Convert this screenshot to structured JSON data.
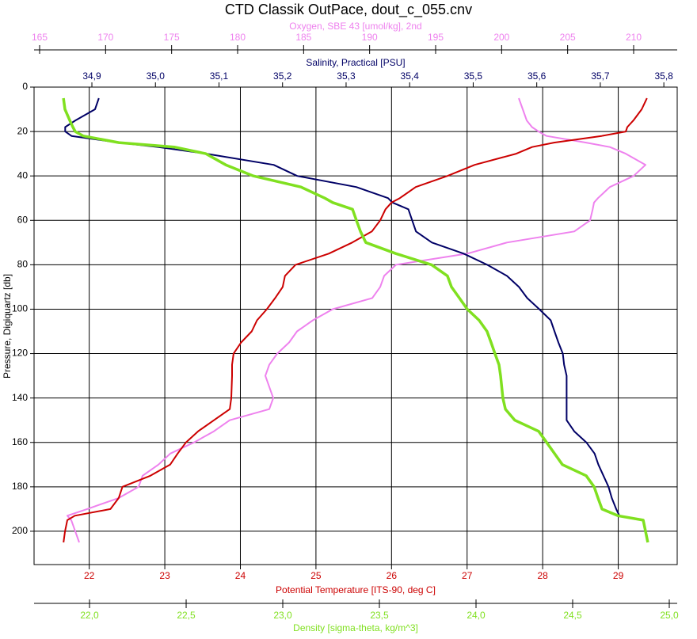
{
  "chart_data": {
    "type": "line",
    "title": "CTD Classik OutPace, dout_c_055.cnv",
    "y_label": "Pressure, Digiquartz [db]",
    "ylim": [
      0,
      215
    ],
    "y_inverted": true,
    "yticks": [
      0,
      20,
      40,
      60,
      80,
      100,
      120,
      140,
      160,
      180,
      200
    ],
    "y": [
      5,
      10,
      15,
      18,
      20,
      22,
      25,
      27,
      30,
      35,
      40,
      45,
      50,
      52,
      55,
      60,
      65,
      70,
      75,
      80,
      85,
      90,
      95,
      100,
      105,
      110,
      115,
      120,
      125,
      130,
      140,
      145,
      150,
      155,
      160,
      165,
      170,
      175,
      180,
      185,
      190,
      193,
      195,
      200,
      205
    ],
    "series": [
      {
        "name": "Oxygen, SBE 43 [umol/kg], 2nd",
        "color": "#ee82ee",
        "xlim": [
          164.58,
          213.3
        ],
        "xticks": [
          165,
          170,
          175,
          180,
          185,
          190,
          195,
          200,
          205,
          210
        ],
        "values": [
          201.3,
          201.6,
          201.9,
          202.3,
          202.8,
          203.4,
          206.4,
          208.2,
          209.4,
          210.9,
          210.0,
          208.2,
          207.3,
          207.0,
          206.9,
          206.7,
          205.5,
          200.4,
          197.4,
          192.0,
          191.1,
          190.8,
          190.2,
          187.2,
          185.7,
          184.5,
          183.9,
          183.0,
          182.4,
          182.1,
          182.7,
          182.4,
          179.4,
          178.2,
          176.7,
          174.9,
          174.0,
          172.8,
          172.5,
          171.0,
          168.6,
          167.1,
          167.4,
          167.7,
          168.0
        ]
      },
      {
        "name": "Salinity, Practical [PSU]",
        "color": "#000066",
        "xlim": [
          34.809,
          35.821
        ],
        "xticks": [
          {
            "value": 34.9,
            "label": "34,9"
          },
          {
            "value": 35.0,
            "label": "35,0"
          },
          {
            "value": 35.1,
            "label": "35,1"
          },
          {
            "value": 35.2,
            "label": "35,2"
          },
          {
            "value": 35.3,
            "label": "35,3"
          },
          {
            "value": 35.4,
            "label": "35,4"
          },
          {
            "value": 35.5,
            "label": "35,5"
          },
          {
            "value": 35.6,
            "label": "35,6"
          },
          {
            "value": 35.7,
            "label": "35,7"
          },
          {
            "value": 35.8,
            "label": "35,8"
          }
        ],
        "values": [
          34.911,
          34.905,
          34.874,
          34.858,
          34.858,
          34.868,
          34.942,
          35.005,
          35.08,
          35.186,
          35.223,
          35.316,
          35.366,
          35.373,
          35.398,
          35.404,
          35.41,
          35.435,
          35.485,
          35.522,
          35.553,
          35.572,
          35.585,
          35.604,
          35.622,
          35.628,
          35.634,
          35.641,
          35.643,
          35.647,
          35.647,
          35.647,
          35.647,
          35.659,
          35.678,
          35.691,
          35.697,
          35.705,
          35.713,
          35.718,
          35.725,
          35.73,
          null,
          null,
          null
        ]
      },
      {
        "name": "Potential Temperature [ITS-90, deg C]",
        "color": "#cc0000",
        "grid": true,
        "xlim": [
          21.27,
          29.78
        ],
        "xticks": [
          22,
          23,
          24,
          25,
          26,
          27,
          28,
          29
        ],
        "values": [
          29.38,
          29.31,
          29.2,
          29.12,
          29.1,
          28.78,
          28.15,
          27.86,
          27.65,
          27.1,
          26.74,
          26.32,
          26.11,
          26.0,
          25.92,
          25.85,
          25.74,
          25.48,
          25.17,
          24.73,
          24.59,
          24.56,
          24.46,
          24.35,
          24.22,
          24.15,
          24.01,
          23.91,
          23.89,
          23.89,
          23.88,
          23.86,
          23.65,
          23.44,
          23.28,
          23.17,
          23.07,
          22.81,
          22.44,
          22.39,
          22.28,
          21.81,
          21.71,
          21.68,
          21.66
        ]
      },
      {
        "name": "Density [sigma-theta, kg/m^3]",
        "color": "#80e020",
        "xlim": [
          21.713,
          25.041
        ],
        "xticks": [
          {
            "value": 22.0,
            "label": "22,0"
          },
          {
            "value": 22.5,
            "label": "22,5"
          },
          {
            "value": 23.0,
            "label": "23,0"
          },
          {
            "value": 23.5,
            "label": "23,5"
          },
          {
            "value": 24.0,
            "label": "24,0"
          },
          {
            "value": 24.5,
            "label": "24,5"
          },
          {
            "value": 25.0,
            "label": "25,0"
          }
        ],
        "values": [
          21.865,
          21.873,
          21.898,
          21.914,
          21.926,
          21.967,
          22.152,
          22.439,
          22.602,
          22.705,
          22.848,
          23.094,
          23.217,
          23.258,
          23.361,
          23.381,
          23.402,
          23.43,
          23.586,
          23.77,
          23.852,
          23.873,
          23.914,
          23.955,
          24.016,
          24.057,
          24.078,
          24.098,
          24.119,
          24.127,
          24.139,
          24.152,
          24.201,
          24.324,
          24.365,
          24.406,
          24.447,
          24.57,
          24.611,
          24.631,
          24.652,
          24.734,
          24.865,
          24.877,
          24.889
        ]
      }
    ]
  }
}
